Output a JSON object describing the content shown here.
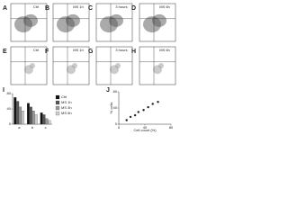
{
  "panels": [
    {
      "label": "A",
      "title": "Ctrl"
    },
    {
      "label": "B",
      "title": "MS 1h"
    },
    {
      "label": "C",
      "title": "3 hours"
    },
    {
      "label": "D",
      "title": "MS 6h"
    },
    {
      "label": "E",
      "title": "Ctrl"
    },
    {
      "label": "F",
      "title": "MS 1h"
    },
    {
      "label": "G",
      "title": "3 hours"
    },
    {
      "label": "H",
      "title": "MS 6h"
    }
  ],
  "chart_data": [
    {
      "type": "bar",
      "label": "I",
      "categories": [
        "a",
        "b",
        "c"
      ],
      "series": [
        {
          "name": "Ctrl",
          "color": "#111111",
          "values": [
            70,
            55,
            30
          ]
        },
        {
          "name": "MS 1h",
          "color": "#555555",
          "values": [
            60,
            45,
            25
          ]
        },
        {
          "name": "MS 3h",
          "color": "#999999",
          "values": [
            45,
            35,
            15
          ]
        },
        {
          "name": "MS 6h",
          "color": "#cccccc",
          "values": [
            35,
            25,
            10
          ]
        }
      ],
      "ylim": [
        0,
        80
      ],
      "yticks": [
        0,
        40,
        80
      ]
    },
    {
      "type": "scatter",
      "label": "J",
      "x_label": "Cell count (%)",
      "y_label": "% cells",
      "x": [
        12,
        18,
        25,
        30,
        38,
        45,
        52,
        60
      ],
      "values": [
        10,
        18,
        22,
        30,
        35,
        42,
        50,
        55
      ],
      "color": "#222222",
      "xlim": [
        0,
        80
      ],
      "ylim": [
        0,
        80
      ],
      "xticks": [
        0,
        40,
        80
      ],
      "yticks": [
        0,
        40,
        80
      ]
    }
  ]
}
